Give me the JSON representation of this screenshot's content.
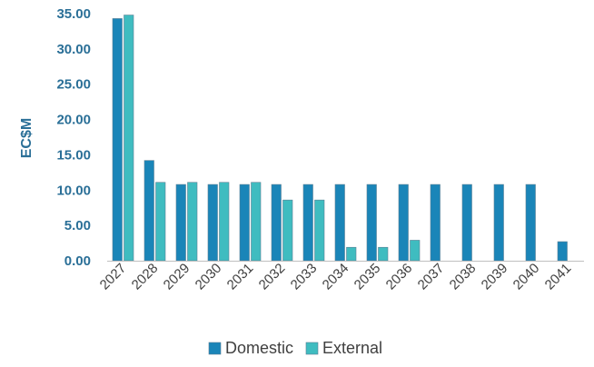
{
  "chart_data": {
    "type": "bar",
    "title": "",
    "xlabel": "",
    "ylabel": "EC$M",
    "ylim": [
      0,
      35
    ],
    "yticks": [
      "0.00",
      "5.00",
      "10.00",
      "15.00",
      "20.00",
      "25.00",
      "30.00",
      "35.00"
    ],
    "grid": false,
    "legend_position": "bottom",
    "categories": [
      "2027",
      "2028",
      "2029",
      "2030",
      "2031",
      "2032",
      "2033",
      "2034",
      "2035",
      "2036",
      "2037",
      "2038",
      "2039",
      "2040",
      "2041"
    ],
    "series": [
      {
        "name": "Domestic",
        "color": "#1a85b8",
        "values": [
          34.3,
          14.2,
          10.8,
          10.8,
          10.8,
          10.8,
          10.8,
          10.8,
          10.8,
          10.8,
          10.8,
          10.8,
          10.8,
          10.8,
          2.7
        ]
      },
      {
        "name": "External",
        "color": "#3fbcc0",
        "values": [
          34.8,
          11.1,
          11.1,
          11.1,
          11.1,
          8.6,
          8.6,
          1.9,
          1.9,
          2.9,
          0,
          0,
          0,
          0,
          0
        ]
      }
    ]
  }
}
